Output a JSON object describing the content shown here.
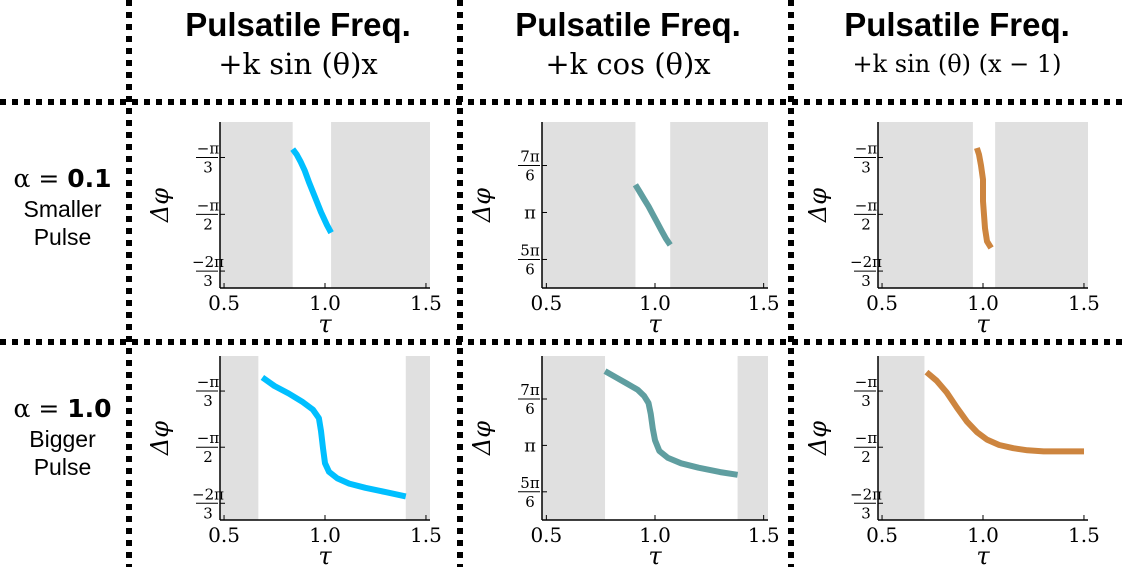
{
  "column_headers": [
    {
      "title": "Pulsatile Freq.",
      "formula": "+k sin (θ)x"
    },
    {
      "title": "Pulsatile Freq.",
      "formula": "+k cos (θ)x"
    },
    {
      "title": "Pulsatile Freq.",
      "formula": "+k sin (θ) (x − 1)"
    }
  ],
  "row_headers": [
    {
      "alpha_symbol": "α = ",
      "alpha_value": "0.1",
      "line1": "Smaller",
      "line2": "Pulse"
    },
    {
      "alpha_symbol": "α = ",
      "alpha_value": "1.0",
      "line1": "Bigger",
      "line2": "Pulse"
    }
  ],
  "colors": {
    "blue": "#00bfff",
    "teal": "#5f9ea0",
    "orange": "#cd853f",
    "shade": "#e0e0e0",
    "divider": "#000000"
  },
  "chart_data": [
    {
      "id": "r1c1",
      "type": "line",
      "xlabel": "τ",
      "ylabel": "Δφ",
      "xlim": [
        0.48,
        1.52
      ],
      "ylim": [
        -2.25,
        -0.72
      ],
      "x_ticks": [
        0.5,
        1.0,
        1.5
      ],
      "x_tick_labels": [
        "0.5",
        "1.0",
        "1.5"
      ],
      "y_ticks": [
        {
          "value": -1.047,
          "num": "−π",
          "den": "3"
        },
        {
          "value": -1.571,
          "num": "−π",
          "den": "2"
        },
        {
          "value": -2.094,
          "num": "−2π",
          "den": "3"
        }
      ],
      "shaded": [
        [
          0.48,
          0.84
        ],
        [
          1.03,
          1.52
        ]
      ],
      "color": "#00bfff",
      "series": [
        {
          "x": [
            0.84,
            0.86,
            0.88,
            0.9,
            0.92,
            0.95,
            0.98,
            1.01,
            1.03
          ],
          "y": [
            -0.97,
            -1.02,
            -1.09,
            -1.17,
            -1.27,
            -1.41,
            -1.55,
            -1.67,
            -1.74
          ]
        }
      ]
    },
    {
      "id": "r1c2",
      "type": "line",
      "xlabel": "τ",
      "ylabel": "Δφ",
      "xlim": [
        0.48,
        1.52
      ],
      "ylim": [
        2.3,
        4.15
      ],
      "x_ticks": [
        0.5,
        1.0,
        1.5
      ],
      "x_tick_labels": [
        "0.5",
        "1.0",
        "1.5"
      ],
      "y_ticks": [
        {
          "value": 3.665,
          "num": "7π",
          "den": "6"
        },
        {
          "value": 3.1416,
          "num": "π",
          "den": ""
        },
        {
          "value": 2.618,
          "num": "5π",
          "den": "6"
        }
      ],
      "shaded": [
        [
          0.48,
          0.91
        ],
        [
          1.07,
          1.52
        ]
      ],
      "color": "#5f9ea0",
      "series": [
        {
          "x": [
            0.91,
            0.93,
            0.95,
            0.97,
            0.99,
            1.01,
            1.03,
            1.05,
            1.07
          ],
          "y": [
            3.45,
            3.37,
            3.29,
            3.21,
            3.12,
            3.03,
            2.94,
            2.85,
            2.78
          ]
        }
      ]
    },
    {
      "id": "r1c3",
      "type": "line",
      "xlabel": "τ",
      "ylabel": "Δφ",
      "xlim": [
        0.48,
        1.52
      ],
      "ylim": [
        -2.25,
        -0.72
      ],
      "x_ticks": [
        0.5,
        1.0,
        1.5
      ],
      "x_tick_labels": [
        "0.5",
        "1.0",
        "1.5"
      ],
      "y_ticks": [
        {
          "value": -1.047,
          "num": "−π",
          "den": "3"
        },
        {
          "value": -1.571,
          "num": "−π",
          "den": "2"
        },
        {
          "value": -2.094,
          "num": "−2π",
          "den": "3"
        }
      ],
      "shaded": [
        [
          0.48,
          0.95
        ],
        [
          1.06,
          1.52
        ]
      ],
      "color": "#cd853f",
      "series": [
        {
          "x": [
            0.97,
            0.98,
            0.99,
            1.0,
            1.0,
            1.01,
            1.02,
            1.04
          ],
          "y": [
            -0.96,
            -1.02,
            -1.12,
            -1.25,
            -1.45,
            -1.7,
            -1.82,
            -1.88
          ]
        }
      ]
    },
    {
      "id": "r2c1",
      "type": "line",
      "xlabel": "τ",
      "ylabel": "Δφ",
      "xlim": [
        0.48,
        1.52
      ],
      "ylim": [
        -2.25,
        -0.72
      ],
      "x_ticks": [
        0.5,
        1.0,
        1.5
      ],
      "x_tick_labels": [
        "0.5",
        "1.0",
        "1.5"
      ],
      "y_ticks": [
        {
          "value": -1.047,
          "num": "−π",
          "den": "3"
        },
        {
          "value": -1.571,
          "num": "−π",
          "den": "2"
        },
        {
          "value": -2.094,
          "num": "−2π",
          "den": "3"
        }
      ],
      "shaded": [
        [
          0.48,
          0.67
        ],
        [
          1.4,
          1.52
        ]
      ],
      "color": "#00bfff",
      "series": [
        {
          "x": [
            0.69,
            0.75,
            0.82,
            0.89,
            0.94,
            0.97,
            0.98,
            0.99,
            1.0,
            1.02,
            1.06,
            1.12,
            1.2,
            1.3,
            1.4
          ],
          "y": [
            -0.92,
            -1.0,
            -1.07,
            -1.15,
            -1.22,
            -1.3,
            -1.42,
            -1.58,
            -1.72,
            -1.8,
            -1.86,
            -1.91,
            -1.95,
            -1.99,
            -2.03
          ]
        }
      ]
    },
    {
      "id": "r2c2",
      "type": "line",
      "xlabel": "τ",
      "ylabel": "Δφ",
      "xlim": [
        0.48,
        1.52
      ],
      "ylim": [
        2.3,
        4.15
      ],
      "x_ticks": [
        0.5,
        1.0,
        1.5
      ],
      "x_tick_labels": [
        "0.5",
        "1.0",
        "1.5"
      ],
      "y_ticks": [
        {
          "value": 3.665,
          "num": "7π",
          "den": "6"
        },
        {
          "value": 3.1416,
          "num": "π",
          "den": ""
        },
        {
          "value": 2.618,
          "num": "5π",
          "den": "6"
        }
      ],
      "shaded": [
        [
          0.48,
          0.77
        ],
        [
          1.38,
          1.52
        ]
      ],
      "color": "#5f9ea0",
      "series": [
        {
          "x": [
            0.77,
            0.82,
            0.87,
            0.92,
            0.95,
            0.97,
            0.98,
            0.99,
            1.0,
            1.02,
            1.06,
            1.12,
            1.2,
            1.3,
            1.38
          ],
          "y": [
            3.98,
            3.91,
            3.84,
            3.77,
            3.7,
            3.62,
            3.5,
            3.33,
            3.2,
            3.08,
            3.0,
            2.94,
            2.89,
            2.84,
            2.81
          ]
        }
      ]
    },
    {
      "id": "r2c3",
      "type": "line",
      "xlabel": "τ",
      "ylabel": "Δφ",
      "xlim": [
        0.48,
        1.52
      ],
      "ylim": [
        -2.25,
        -0.72
      ],
      "x_ticks": [
        0.5,
        1.0,
        1.5
      ],
      "x_tick_labels": [
        "0.5",
        "1.0",
        "1.5"
      ],
      "y_ticks": [
        {
          "value": -1.047,
          "num": "−π",
          "den": "3"
        },
        {
          "value": -1.571,
          "num": "−π",
          "den": "2"
        },
        {
          "value": -2.094,
          "num": "−2π",
          "den": "3"
        }
      ],
      "shaded": [
        [
          0.48,
          0.71
        ]
      ],
      "color": "#cd853f",
      "series": [
        {
          "x": [
            0.72,
            0.77,
            0.82,
            0.87,
            0.92,
            0.97,
            1.02,
            1.08,
            1.15,
            1.22,
            1.3,
            1.38,
            1.46,
            1.5
          ],
          "y": [
            -0.87,
            -0.95,
            -1.06,
            -1.2,
            -1.33,
            -1.43,
            -1.5,
            -1.55,
            -1.58,
            -1.6,
            -1.61,
            -1.61,
            -1.61,
            -1.61
          ]
        }
      ]
    }
  ]
}
